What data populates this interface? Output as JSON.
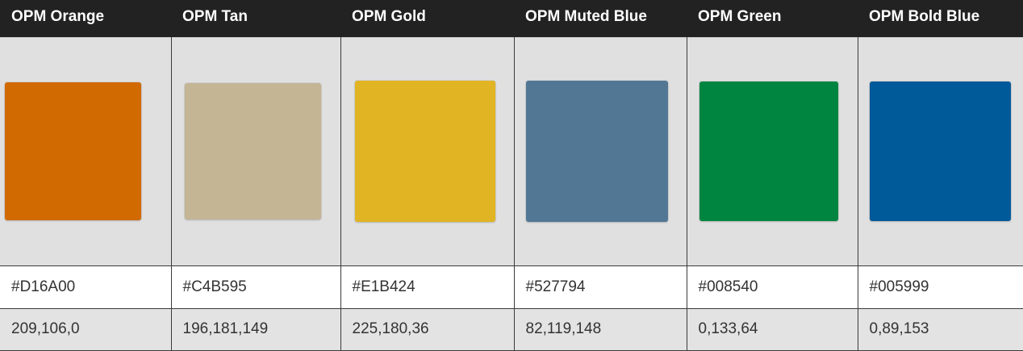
{
  "colors": [
    {
      "name": "OPM Orange",
      "hex": "#D16A00",
      "rgb": "209,106,0",
      "swatch": "#D16A00"
    },
    {
      "name": "OPM Tan",
      "hex": "#C4B595",
      "rgb": "196,181,149",
      "swatch": "#C4B595"
    },
    {
      "name": "OPM Gold",
      "hex": "#E1B424",
      "rgb": "225,180,36",
      "swatch": "#E1B424"
    },
    {
      "name": "OPM Muted Blue",
      "hex": "#527794",
      "rgb": "82,119,148",
      "swatch": "#527794"
    },
    {
      "name": "OPM Green",
      "hex": "#008540",
      "rgb": "0,133,64",
      "swatch": "#008540"
    },
    {
      "name": "OPM Bold Blue",
      "hex": "#005999",
      "rgb": "0,89,153",
      "swatch": "#005999"
    }
  ]
}
